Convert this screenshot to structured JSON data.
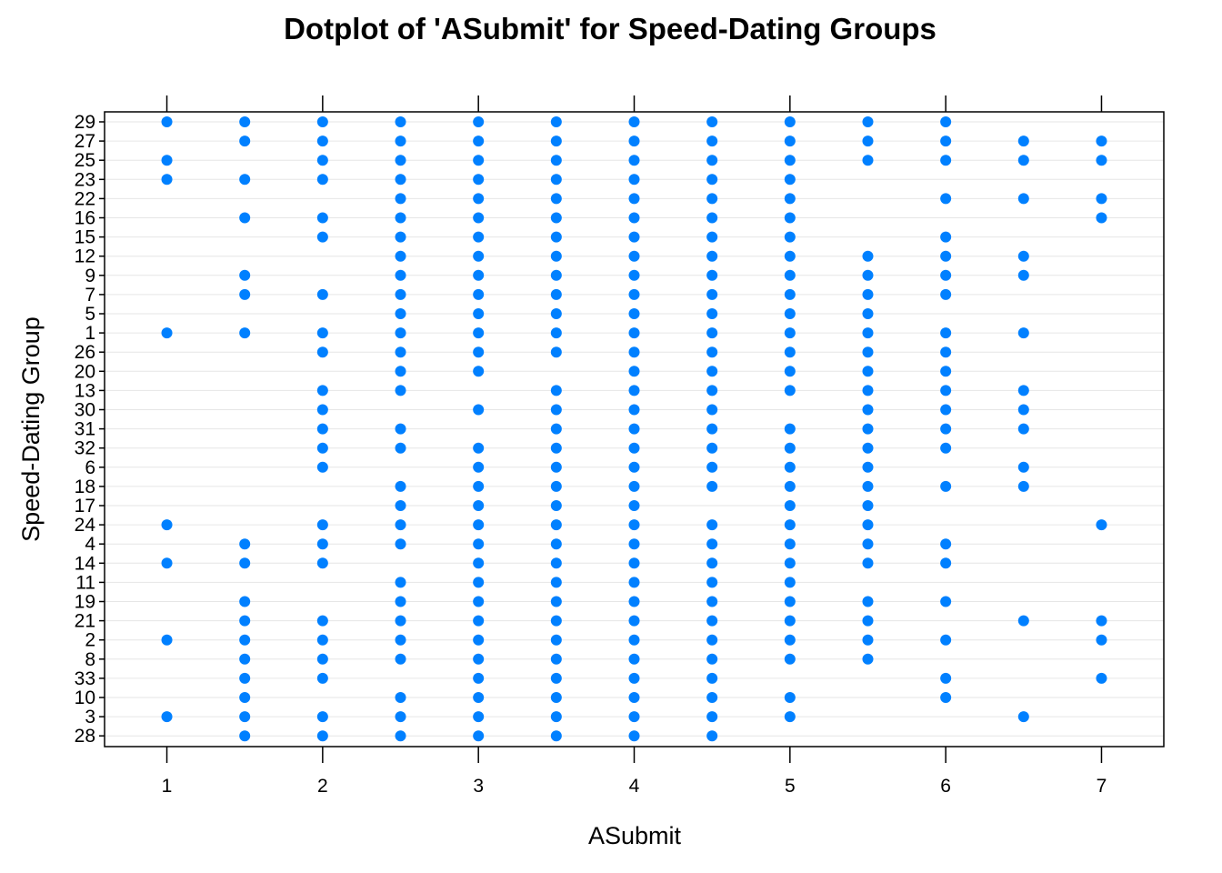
{
  "chart_data": {
    "type": "scatter",
    "title": "Dotplot of 'ASubmit' for Speed-Dating Groups",
    "xlabel": "ASubmit",
    "ylabel": "Speed-Dating Group",
    "xlim": [
      0.6,
      7.4
    ],
    "xticks": [
      1,
      2,
      3,
      4,
      5,
      6,
      7
    ],
    "grid": "horizontal",
    "point_color": "#0080ff",
    "groups": [
      "29",
      "27",
      "25",
      "23",
      "22",
      "16",
      "15",
      "12",
      "9",
      "7",
      "5",
      "1",
      "26",
      "20",
      "13",
      "30",
      "31",
      "32",
      "6",
      "18",
      "17",
      "24",
      "4",
      "14",
      "11",
      "19",
      "21",
      "2",
      "8",
      "33",
      "10",
      "3",
      "28"
    ],
    "observations": [
      {
        "group": "29",
        "x": [
          1,
          1.5,
          2,
          2.5,
          3,
          3.5,
          4,
          4.5,
          5,
          5.5,
          6
        ]
      },
      {
        "group": "27",
        "x": [
          1.5,
          2,
          2.5,
          3,
          3.5,
          4,
          4.5,
          5,
          5.5,
          6,
          6.5,
          7
        ]
      },
      {
        "group": "25",
        "x": [
          1,
          2,
          2.5,
          3,
          3.5,
          4,
          4.5,
          5,
          5.5,
          6,
          6.5,
          7
        ]
      },
      {
        "group": "23",
        "x": [
          1,
          1.5,
          2,
          2.5,
          3,
          3.5,
          4,
          4.5,
          5
        ]
      },
      {
        "group": "22",
        "x": [
          2.5,
          3,
          3.5,
          4,
          4.5,
          5,
          6,
          6.5,
          7
        ]
      },
      {
        "group": "16",
        "x": [
          1.5,
          2,
          2.5,
          3,
          3.5,
          4,
          4.5,
          5,
          7
        ]
      },
      {
        "group": "15",
        "x": [
          2,
          2.5,
          3,
          3.5,
          4,
          4.5,
          5,
          6
        ]
      },
      {
        "group": "12",
        "x": [
          2.5,
          3,
          3.5,
          4,
          4.5,
          5,
          5.5,
          6,
          6.5
        ]
      },
      {
        "group": "9",
        "x": [
          1.5,
          2.5,
          3,
          3.5,
          4,
          4.5,
          5,
          5.5,
          6,
          6.5
        ]
      },
      {
        "group": "7",
        "x": [
          1.5,
          2,
          2.5,
          3,
          3.5,
          4,
          4.5,
          5,
          5.5,
          6
        ]
      },
      {
        "group": "5",
        "x": [
          2.5,
          3,
          3.5,
          4,
          4.5,
          5,
          5.5
        ]
      },
      {
        "group": "1",
        "x": [
          1,
          1.5,
          2,
          2.5,
          3,
          3.5,
          4,
          4.5,
          5,
          5.5,
          6,
          6.5
        ]
      },
      {
        "group": "26",
        "x": [
          2,
          2.5,
          3,
          3.5,
          4,
          4.5,
          5,
          5.5,
          6
        ]
      },
      {
        "group": "20",
        "x": [
          2.5,
          3,
          4,
          4.5,
          5,
          5.5,
          6
        ]
      },
      {
        "group": "13",
        "x": [
          2,
          2.5,
          3.5,
          4,
          4.5,
          5,
          5.5,
          6,
          6.5
        ]
      },
      {
        "group": "30",
        "x": [
          2,
          3,
          3.5,
          4,
          4.5,
          5.5,
          6,
          6.5
        ]
      },
      {
        "group": "31",
        "x": [
          2,
          2.5,
          3.5,
          4,
          4.5,
          5,
          5.5,
          6,
          6.5
        ]
      },
      {
        "group": "32",
        "x": [
          2,
          2.5,
          3,
          3.5,
          4,
          4.5,
          5,
          5.5,
          6
        ]
      },
      {
        "group": "6",
        "x": [
          2,
          3,
          3.5,
          4,
          4.5,
          5,
          5.5,
          6.5
        ]
      },
      {
        "group": "18",
        "x": [
          2.5,
          3,
          3.5,
          4,
          4.5,
          5,
          5.5,
          6,
          6.5
        ]
      },
      {
        "group": "17",
        "x": [
          2.5,
          3,
          3.5,
          4,
          5,
          5.5
        ]
      },
      {
        "group": "24",
        "x": [
          1,
          2,
          2.5,
          3,
          3.5,
          4,
          4.5,
          5,
          5.5,
          7
        ]
      },
      {
        "group": "4",
        "x": [
          1.5,
          2,
          2.5,
          3,
          3.5,
          4,
          4.5,
          5,
          5.5,
          6
        ]
      },
      {
        "group": "14",
        "x": [
          1,
          1.5,
          2,
          3,
          3.5,
          4,
          4.5,
          5,
          5.5,
          6
        ]
      },
      {
        "group": "11",
        "x": [
          2.5,
          3,
          3.5,
          4,
          4.5,
          5
        ]
      },
      {
        "group": "19",
        "x": [
          1.5,
          2.5,
          3,
          3.5,
          4,
          4.5,
          5,
          5.5,
          6
        ]
      },
      {
        "group": "21",
        "x": [
          1.5,
          2,
          2.5,
          3,
          3.5,
          4,
          4.5,
          5,
          5.5,
          6.5,
          7
        ]
      },
      {
        "group": "2",
        "x": [
          1,
          1.5,
          2,
          2.5,
          3,
          3.5,
          4,
          4.5,
          5,
          5.5,
          6,
          7
        ]
      },
      {
        "group": "8",
        "x": [
          1.5,
          2,
          2.5,
          3,
          3.5,
          4,
          4.5,
          5,
          5.5
        ]
      },
      {
        "group": "33",
        "x": [
          1.5,
          2,
          3,
          3.5,
          4,
          4.5,
          6,
          7
        ]
      },
      {
        "group": "10",
        "x": [
          1.5,
          2.5,
          3,
          3.5,
          4,
          4.5,
          5,
          6
        ]
      },
      {
        "group": "3",
        "x": [
          1,
          1.5,
          2,
          2.5,
          3,
          3.5,
          4,
          4.5,
          5,
          6.5
        ]
      },
      {
        "group": "28",
        "x": [
          1.5,
          2,
          2.5,
          3,
          3.5,
          4,
          4.5
        ]
      }
    ]
  }
}
